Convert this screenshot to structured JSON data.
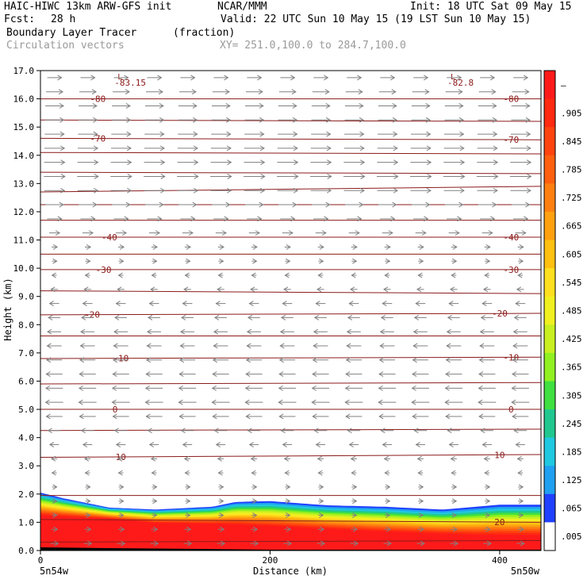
{
  "header": {
    "model": "HAIC-HIWC 13km ARW-GFS init",
    "org": "NCAR/MMM",
    "init": "Init: 18 UTC Sat 09 May 15",
    "fcst_label": "Fcst:",
    "fcst_value": "28 h",
    "valid": "Valid: 22 UTC Sun 10 May 15 (19 LST Sun 10 May 15)",
    "field_name": "Boundary Layer Tracer",
    "field_units": "(fraction)",
    "vector_label": "Circulation vectors",
    "xy_label": "XY= 251.0,100.0 to 284.7,100.0"
  },
  "chart_data": {
    "type": "heatmap",
    "title": "Boundary Layer Tracer",
    "xlabel": "Distance (km)",
    "ylabel": "Height (km)",
    "xlim": [
      0,
      436
    ],
    "ylim": [
      0,
      17
    ],
    "x_ticks": [
      0,
      200,
      400
    ],
    "x_end_labels": [
      "5n54w",
      "5n50w"
    ],
    "y_ticks": [
      "0.0",
      "1.0",
      "2.0",
      "3.0",
      "4.0",
      "5.0",
      "6.0",
      "7.0",
      "8.0",
      "9.0",
      "10.0",
      "11.0",
      "12.0",
      "13.0",
      "14.0",
      "15.0",
      "16.0",
      "17.0"
    ],
    "colorbar_labels": [
      "–",
      ".905",
      ".845",
      ".785",
      ".725",
      ".665",
      ".605",
      ".545",
      ".485",
      ".425",
      ".365",
      ".305",
      ".245",
      ".185",
      ".125",
      ".065",
      ".005"
    ],
    "colorbar_colors": [
      "#ff1a1a",
      "#ff2a10",
      "#ff4410",
      "#ff6010",
      "#ff8010",
      "#ffa010",
      "#ffc010",
      "#ffe020",
      "#f0f020",
      "#c8f020",
      "#90f020",
      "#40e040",
      "#20c890",
      "#20c8e0",
      "#20a0f0",
      "#2040ff",
      "#ffffff"
    ],
    "boundary_layer_top_km": [
      [
        0,
        2.05
      ],
      [
        20,
        1.85
      ],
      [
        60,
        1.52
      ],
      [
        100,
        1.45
      ],
      [
        150,
        1.55
      ],
      [
        170,
        1.72
      ],
      [
        200,
        1.75
      ],
      [
        250,
        1.6
      ],
      [
        300,
        1.55
      ],
      [
        350,
        1.45
      ],
      [
        400,
        1.62
      ],
      [
        436,
        1.62
      ]
    ],
    "red_core_top_km": [
      [
        0,
        1.2
      ],
      [
        60,
        1.1
      ],
      [
        100,
        0.95
      ],
      [
        160,
        0.9
      ],
      [
        220,
        0.78
      ],
      [
        300,
        0.62
      ],
      [
        380,
        0.5
      ],
      [
        436,
        0.48
      ]
    ],
    "contour_labels": [
      "-83.15",
      "-82.8",
      "-80",
      "-80",
      "-70",
      "-70",
      "-40",
      "-40",
      "-30",
      "-30",
      "-20",
      "-20",
      "-10",
      "-10",
      "0",
      "0",
      "10",
      "10",
      "20",
      "20"
    ],
    "contours": [
      {
        "left": 16.0,
        "right": 16.0,
        "labels": [
          {
            "x": 50,
            "text": "-80"
          },
          {
            "x": 410,
            "text": "-80"
          }
        ]
      },
      {
        "left": 15.25,
        "right": 15.2,
        "labels": []
      },
      {
        "left": 14.6,
        "right": 14.55,
        "labels": [
          {
            "x": 50,
            "text": "-70"
          },
          {
            "x": 410,
            "text": "-70"
          }
        ]
      },
      {
        "left": 14.1,
        "right": 14.05,
        "labels": []
      },
      {
        "left": 13.4,
        "right": 13.35,
        "labels": []
      },
      {
        "left": 12.7,
        "right": 12.9,
        "labels": []
      },
      {
        "left": 12.25,
        "right": 12.25,
        "labels": []
      },
      {
        "left": 11.7,
        "right": 11.7,
        "labels": []
      },
      {
        "left": 11.1,
        "right": 11.1,
        "labels": [
          {
            "x": 60,
            "text": "-40"
          },
          {
            "x": 410,
            "text": "-40"
          }
        ]
      },
      {
        "left": 10.5,
        "right": 10.5,
        "labels": []
      },
      {
        "left": 9.95,
        "right": 9.95,
        "labels": [
          {
            "x": 55,
            "text": "-30"
          },
          {
            "x": 410,
            "text": "-30"
          }
        ]
      },
      {
        "left": 9.2,
        "right": 9.1,
        "labels": []
      },
      {
        "left": 8.35,
        "right": 8.4,
        "labels": [
          {
            "x": 45,
            "text": "-20"
          },
          {
            "x": 400,
            "text": "-20"
          }
        ]
      },
      {
        "left": 7.6,
        "right": 7.6,
        "labels": []
      },
      {
        "left": 6.8,
        "right": 6.85,
        "labels": [
          {
            "x": 70,
            "text": "-10"
          },
          {
            "x": 410,
            "text": "-10"
          }
        ]
      },
      {
        "left": 5.9,
        "right": 5.95,
        "labels": []
      },
      {
        "left": 5.0,
        "right": 5.0,
        "labels": [
          {
            "x": 65,
            "text": "0"
          },
          {
            "x": 410,
            "text": "0"
          }
        ]
      },
      {
        "left": 4.25,
        "right": 4.3,
        "labels": []
      },
      {
        "left": 3.3,
        "right": 3.4,
        "labels": [
          {
            "x": 70,
            "text": "10"
          },
          {
            "x": 400,
            "text": "10"
          }
        ]
      },
      {
        "left": 1.95,
        "right": 1.95,
        "labels": []
      },
      {
        "left": 1.1,
        "right": 1.0,
        "labels": [
          {
            "x": 400,
            "text": "20"
          }
        ]
      },
      {
        "left": 0.3,
        "right": 0.35,
        "labels": []
      }
    ],
    "min_labels": [
      {
        "x": 70,
        "y": 17.0,
        "mark": "L",
        "value": "-83.15"
      },
      {
        "x": 360,
        "y": 17.0,
        "mark": "L",
        "value": "-82.8"
      }
    ],
    "vectors": {
      "dx_km": 29,
      "dy_km": 0.5,
      "u_profile": [
        [
          0,
          0.35
        ],
        [
          2,
          0.1
        ],
        [
          4,
          -0.45
        ],
        [
          5,
          -0.75
        ],
        [
          6,
          -0.7
        ],
        [
          8,
          -0.55
        ],
        [
          9,
          -0.35
        ],
        [
          10,
          -0.1
        ],
        [
          11,
          0.35
        ],
        [
          12,
          0.7
        ],
        [
          13,
          0.9
        ],
        [
          15,
          0.8
        ],
        [
          16,
          0.75
        ],
        [
          17,
          0.55
        ]
      ]
    },
    "colors": {
      "contour": "#8b1a1a",
      "vector": "#808080",
      "terrain": "#000000"
    }
  }
}
